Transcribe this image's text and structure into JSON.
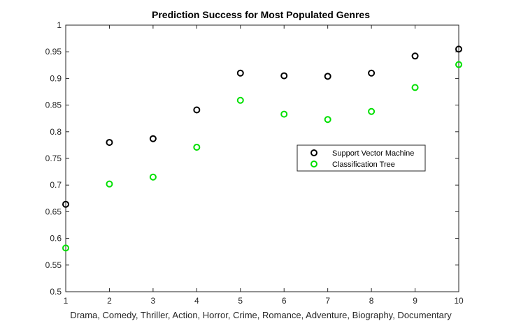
{
  "chart_data": {
    "type": "scatter",
    "title": "Prediction Success for Most Populated Genres",
    "xlabel": "Drama, Comedy, Thriller, Action, Horror, Crime, Romance, Adventure, Biography, Documentary",
    "ylabel": "",
    "xlim": [
      1,
      10
    ],
    "ylim": [
      0.5,
      1
    ],
    "x_ticks": [
      "1",
      "2",
      "3",
      "4",
      "5",
      "6",
      "7",
      "8",
      "9",
      "10"
    ],
    "y_ticks": [
      "0.5",
      "0.55",
      "0.6",
      "0.65",
      "0.7",
      "0.75",
      "0.8",
      "0.85",
      "0.9",
      "0.95",
      "1"
    ],
    "grid": false,
    "legend_position": "center-right",
    "x": [
      1,
      2,
      3,
      4,
      5,
      6,
      7,
      8,
      9,
      10
    ],
    "series": [
      {
        "name": "Support Vector Machine",
        "color": "#000000",
        "marker": "circle-open",
        "values": [
          0.664,
          0.78,
          0.787,
          0.841,
          0.91,
          0.905,
          0.904,
          0.91,
          0.942,
          0.955
        ]
      },
      {
        "name": "Classification Tree",
        "color": "#00e000",
        "marker": "circle-open",
        "values": [
          0.582,
          0.702,
          0.715,
          0.771,
          0.859,
          0.833,
          0.823,
          0.838,
          0.883,
          0.926
        ]
      }
    ]
  }
}
